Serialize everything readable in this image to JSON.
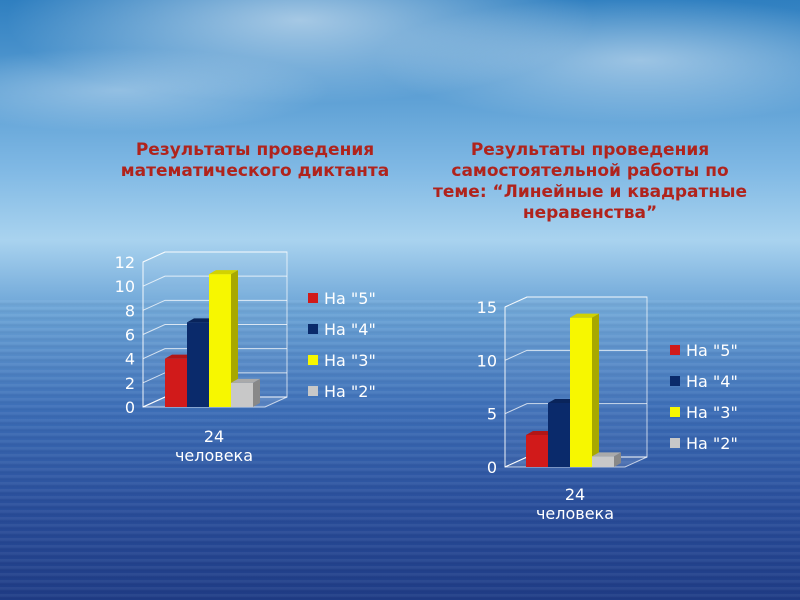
{
  "chart_data": [
    {
      "type": "bar",
      "title": "Результаты проведения математического диктанта",
      "categories": [
        "24 человека"
      ],
      "category_lines": [
        "24",
        "человека"
      ],
      "series": [
        {
          "name": "На \"5\"",
          "values": [
            4
          ],
          "color": "#d11a1a"
        },
        {
          "name": "На \"4\"",
          "values": [
            7
          ],
          "color": "#0a2a6b"
        },
        {
          "name": "На \"3\"",
          "values": [
            11
          ],
          "color": "#f7f700"
        },
        {
          "name": "На \"2\"",
          "values": [
            2
          ],
          "color": "#c8c8c8"
        }
      ],
      "yticks": [
        "0",
        "2",
        "4",
        "6",
        "8",
        "10",
        "12"
      ],
      "ylim": [
        0,
        12
      ],
      "legend": "right",
      "grid": true
    },
    {
      "type": "bar",
      "title": "Результаты проведения самостоятельной работы по теме: “Линейные и квадратные неравенства”",
      "categories": [
        "24 человека"
      ],
      "category_lines": [
        "24",
        "человека"
      ],
      "series": [
        {
          "name": "На \"5\"",
          "values": [
            3
          ],
          "color": "#d11a1a"
        },
        {
          "name": "На \"4\"",
          "values": [
            6
          ],
          "color": "#0a2a6b"
        },
        {
          "name": "На \"3\"",
          "values": [
            14
          ],
          "color": "#f7f700"
        },
        {
          "name": "На \"2\"",
          "values": [
            1
          ],
          "color": "#c8c8c8"
        }
      ],
      "yticks": [
        "0",
        "5",
        "10",
        "15"
      ],
      "ylim": [
        0,
        15
      ],
      "legend": "right",
      "grid": true
    }
  ]
}
